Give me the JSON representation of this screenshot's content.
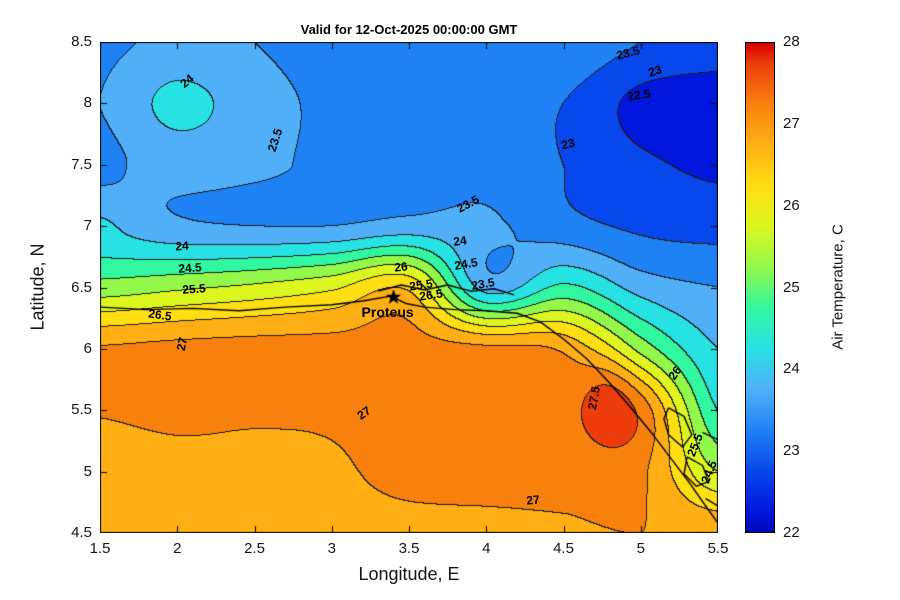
{
  "chart_data": {
    "type": "filled-contour",
    "title": "Valid for 12-Oct-2025 00:00:00 GMT",
    "xlabel": "Longitude, E",
    "ylabel": "Latitude, N",
    "xlim": [
      1.5,
      5.5
    ],
    "ylim": [
      4.5,
      8.5
    ],
    "xticks": {
      "values": [
        1.5,
        2,
        2.5,
        3,
        3.5,
        4,
        4.5,
        5,
        5.5
      ],
      "labels": [
        "1.5",
        "2",
        "2.5",
        "3",
        "3.5",
        "4",
        "4.5",
        "5",
        "5.5"
      ]
    },
    "yticks": {
      "values": [
        4.5,
        5,
        5.5,
        6,
        6.5,
        7,
        7.5,
        8,
        8.5
      ],
      "labels": [
        "4.5",
        "5",
        "5.5",
        "6",
        "6.5",
        "7",
        "7.5",
        "8",
        "8.5"
      ]
    },
    "colorbar": {
      "label": "Air Temperature, C",
      "min": 22,
      "max": 28,
      "tick_values": [
        22,
        23,
        24,
        25,
        26,
        27,
        28
      ],
      "tick_labels": [
        "22",
        "23",
        "24",
        "25",
        "26",
        "27",
        "28"
      ],
      "bottom_color": "#0008B8",
      "top_color": "#D40000"
    },
    "contour_levels": {
      "min": 22,
      "max": 28,
      "step": 0.5
    },
    "band_colors": [
      "#0117DD",
      "#0847EB",
      "#1E82F5",
      "#4FB0F9",
      "#26E2E2",
      "#31F7A1",
      "#92F849",
      "#DCF61F",
      "#FFDE12",
      "#FFAF13",
      "#F8810E",
      "#EE3D0A"
    ],
    "line_color": "#1c1c1c",
    "coast_color": "#000000",
    "field_grid": {
      "lon": [
        1.5,
        2.0,
        2.5,
        3.0,
        3.5,
        4.0,
        4.5,
        5.0,
        5.5
      ],
      "lat": [
        8.5,
        8.0,
        7.5,
        7.0,
        6.5,
        6.0,
        5.5,
        5.0,
        4.5
      ],
      "temps_c": [
        [
          23.4,
          23.6,
          23.5,
          23.3,
          23.2,
          23.2,
          23.4,
          23.0,
          22.8
        ],
        [
          23.5,
          24.15,
          23.7,
          23.4,
          23.3,
          23.2,
          23.0,
          22.35,
          22.2
        ],
        [
          23.4,
          23.7,
          23.6,
          23.4,
          23.3,
          23.3,
          23.0,
          22.6,
          22.4
        ],
        [
          23.9,
          23.6,
          23.5,
          23.5,
          23.7,
          23.6,
          23.2,
          22.9,
          22.8
        ],
        [
          25.2,
          25.4,
          25.6,
          25.9,
          26.4,
          23.8,
          24.6,
          23.8,
          23.5
        ],
        [
          27.05,
          27.15,
          27.2,
          27.2,
          27.2,
          27.1,
          26.9,
          25.3,
          24.0
        ],
        [
          27.02,
          27.08,
          27.05,
          27.06,
          27.15,
          27.2,
          27.3,
          27.25,
          24.5
        ],
        [
          26.8,
          26.88,
          26.9,
          26.95,
          27.1,
          27.15,
          27.15,
          27.1,
          25.5
        ],
        [
          26.7,
          26.8,
          26.85,
          26.9,
          26.9,
          26.9,
          26.95,
          27.0,
          26.9
        ]
      ]
    },
    "anomalies": [
      {
        "lon": 4.8,
        "lat": 5.62,
        "sx": 0.17,
        "sy": 0.33,
        "amp": 0.5
      },
      {
        "lon": 1.45,
        "lat": 7.0,
        "sx": 0.18,
        "sy": 0.14,
        "amp": 0.3
      }
    ],
    "contour_labels": [
      {
        "text": "24",
        "lon": 2.06,
        "lat": 8.18,
        "rot": -40
      },
      {
        "text": "23.5",
        "lon": 2.63,
        "lat": 7.7,
        "rot": -72
      },
      {
        "text": "23.5",
        "lon": 4.92,
        "lat": 8.41,
        "rot": -14
      },
      {
        "text": "23",
        "lon": 5.09,
        "lat": 8.26,
        "rot": -18
      },
      {
        "text": "22.5",
        "lon": 4.99,
        "lat": 8.07,
        "rot": -8
      },
      {
        "text": "23",
        "lon": 4.53,
        "lat": 7.67,
        "rot": -14
      },
      {
        "text": "23.5",
        "lon": 3.88,
        "lat": 7.18,
        "rot": -28
      },
      {
        "text": "24",
        "lon": 3.83,
        "lat": 6.88,
        "rot": -8
      },
      {
        "text": "24",
        "lon": 2.03,
        "lat": 6.84,
        "rot": -4
      },
      {
        "text": "24.5",
        "lon": 2.08,
        "lat": 6.66,
        "rot": -4
      },
      {
        "text": "25.5",
        "lon": 2.11,
        "lat": 6.49,
        "rot": -4
      },
      {
        "text": "26.5",
        "lon": 1.89,
        "lat": 6.28,
        "rot": 8
      },
      {
        "text": "27",
        "lon": 2.03,
        "lat": 6.04,
        "rot": -78
      },
      {
        "text": "26",
        "lon": 3.45,
        "lat": 6.67,
        "rot": -6
      },
      {
        "text": "25.5",
        "lon": 3.58,
        "lat": 6.52,
        "rot": -8
      },
      {
        "text": "24.5",
        "lon": 3.87,
        "lat": 6.69,
        "rot": -10
      },
      {
        "text": "23.5",
        "lon": 3.98,
        "lat": 6.53,
        "rot": -10
      },
      {
        "text": "26.5",
        "lon": 3.64,
        "lat": 6.44,
        "rot": -8
      },
      {
        "text": "27.5",
        "lon": 4.7,
        "lat": 5.6,
        "rot": -80
      },
      {
        "text": "27",
        "lon": 3.21,
        "lat": 5.48,
        "rot": -35
      },
      {
        "text": "27",
        "lon": 4.3,
        "lat": 4.77,
        "rot": -5
      },
      {
        "text": "26",
        "lon": 5.22,
        "lat": 5.8,
        "rot": -55
      },
      {
        "text": "25.5",
        "lon": 5.35,
        "lat": 5.22,
        "rot": -68
      },
      {
        "text": "24.5",
        "lon": 5.44,
        "lat": 5.0,
        "rot": -68
      }
    ],
    "marker": {
      "name": "Proteus",
      "lon": 3.4,
      "lat": 6.42
    },
    "coastlines": [
      [
        [
          1.5,
          6.34
        ],
        [
          1.8,
          6.32
        ],
        [
          2.1,
          6.33
        ],
        [
          2.4,
          6.31
        ],
        [
          2.7,
          6.34
        ],
        [
          3.0,
          6.36
        ],
        [
          3.2,
          6.39
        ],
        [
          3.38,
          6.43
        ],
        [
          3.48,
          6.37
        ],
        [
          3.6,
          6.34
        ],
        [
          3.8,
          6.32
        ],
        [
          4.0,
          6.31
        ],
        [
          4.2,
          6.29
        ],
        [
          4.35,
          6.22
        ],
        [
          4.5,
          6.08
        ],
        [
          4.65,
          5.92
        ],
        [
          4.8,
          5.72
        ],
        [
          4.95,
          5.5
        ],
        [
          5.08,
          5.3
        ],
        [
          5.2,
          5.1
        ],
        [
          5.32,
          4.9
        ],
        [
          5.42,
          4.72
        ],
        [
          5.5,
          4.58
        ]
      ],
      [
        [
          3.3,
          6.47
        ],
        [
          3.45,
          6.52
        ],
        [
          3.6,
          6.48
        ],
        [
          3.75,
          6.52
        ],
        [
          3.9,
          6.47
        ],
        [
          4.05,
          6.49
        ],
        [
          4.18,
          6.44
        ]
      ],
      [
        [
          5.18,
          5.52
        ],
        [
          5.28,
          5.45
        ],
        [
          5.33,
          5.3
        ],
        [
          5.27,
          5.2
        ],
        [
          5.18,
          5.3
        ],
        [
          5.15,
          5.43
        ],
        [
          5.18,
          5.52
        ]
      ],
      [
        [
          5.3,
          5.12
        ],
        [
          5.4,
          5.05
        ],
        [
          5.44,
          4.92
        ],
        [
          5.36,
          4.88
        ],
        [
          5.28,
          4.98
        ],
        [
          5.3,
          5.12
        ]
      ],
      [
        [
          5.4,
          5.32
        ],
        [
          5.5,
          5.26
        ]
      ],
      [
        [
          5.42,
          4.78
        ],
        [
          5.5,
          4.72
        ]
      ]
    ]
  }
}
